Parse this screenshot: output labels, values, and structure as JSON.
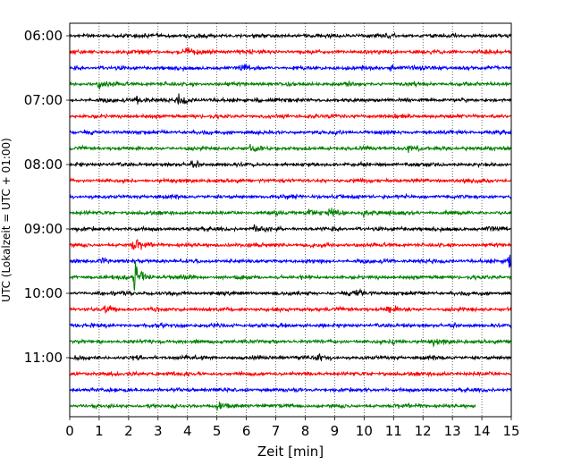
{
  "chart_data": {
    "type": "line",
    "subtype": "helicorder",
    "xlabel": "Zeit  [min]",
    "ylabel": "UTC (Lokalzeit = UTC + 01:00)",
    "xlim": [
      0,
      15
    ],
    "x_ticks": [
      "0",
      "1",
      "2",
      "3",
      "4",
      "5",
      "6",
      "7",
      "8",
      "9",
      "10",
      "11",
      "12",
      "13",
      "14",
      "15"
    ],
    "y_tick_labels": [
      "06:00",
      "07:00",
      "08:00",
      "09:00",
      "10:00",
      "11:00"
    ],
    "grid": "vertical-dotted",
    "trace_colors": [
      "#000000",
      "#ff0000",
      "#0000ff",
      "#008000"
    ],
    "traces": [
      {
        "start": "06:00",
        "end_min": 15
      },
      {
        "start": "06:15",
        "end_min": 15
      },
      {
        "start": "06:30",
        "end_min": 15
      },
      {
        "start": "06:45",
        "end_min": 15
      },
      {
        "start": "07:00",
        "end_min": 15
      },
      {
        "start": "07:15",
        "end_min": 15
      },
      {
        "start": "07:30",
        "end_min": 15
      },
      {
        "start": "07:45",
        "end_min": 15
      },
      {
        "start": "08:00",
        "end_min": 15
      },
      {
        "start": "08:15",
        "end_min": 15
      },
      {
        "start": "08:30",
        "end_min": 15
      },
      {
        "start": "08:45",
        "end_min": 15
      },
      {
        "start": "09:00",
        "end_min": 15
      },
      {
        "start": "09:15",
        "end_min": 15
      },
      {
        "start": "09:30",
        "end_min": 15
      },
      {
        "start": "09:45",
        "end_min": 15
      },
      {
        "start": "10:00",
        "end_min": 15
      },
      {
        "start": "10:15",
        "end_min": 15
      },
      {
        "start": "10:30",
        "end_min": 15
      },
      {
        "start": "10:45",
        "end_min": 15
      },
      {
        "start": "11:00",
        "end_min": 15
      },
      {
        "start": "11:15",
        "end_min": 15
      },
      {
        "start": "11:30",
        "end_min": 15
      },
      {
        "start": "11:45",
        "end_min": 13.8
      }
    ],
    "events": [
      {
        "trace": 1,
        "x": 4.0,
        "amp": 2.2
      },
      {
        "trace": 2,
        "x": 5.8,
        "amp": 1.5
      },
      {
        "trace": 2,
        "x": 10.9,
        "amp": 1.6
      },
      {
        "trace": 3,
        "x": 1.0,
        "amp": 1.4
      },
      {
        "trace": 4,
        "x": 2.3,
        "amp": 1.8
      },
      {
        "trace": 4,
        "x": 3.7,
        "amp": 2.4
      },
      {
        "trace": 4,
        "x": 6.3,
        "amp": 1.2
      },
      {
        "trace": 7,
        "x": 6.1,
        "amp": 1.3
      },
      {
        "trace": 7,
        "x": 11.5,
        "amp": 1.4
      },
      {
        "trace": 8,
        "x": 4.1,
        "amp": 1.3
      },
      {
        "trace": 11,
        "x": 8.0,
        "amp": 2.0
      },
      {
        "trace": 11,
        "x": 8.8,
        "amp": 2.5
      },
      {
        "trace": 11,
        "x": 10.0,
        "amp": 1.5
      },
      {
        "trace": 12,
        "x": 6.3,
        "amp": 1.8
      },
      {
        "trace": 12,
        "x": 14.2,
        "amp": 1.3
      },
      {
        "trace": 13,
        "x": 2.15,
        "amp": 3.0
      },
      {
        "trace": 14,
        "x": 1.0,
        "amp": 1.6
      },
      {
        "trace": 14,
        "x": 14.9,
        "amp": 4.5
      },
      {
        "trace": 15,
        "x": 2.2,
        "amp": 8.0
      },
      {
        "trace": 16,
        "x": 9.7,
        "amp": 1.8
      },
      {
        "trace": 17,
        "x": 10.8,
        "amp": 2.2
      },
      {
        "trace": 17,
        "x": 1.2,
        "amp": 1.6
      },
      {
        "trace": 19,
        "x": 11.0,
        "amp": 1.6
      },
      {
        "trace": 19,
        "x": 12.3,
        "amp": 1.4
      },
      {
        "trace": 20,
        "x": 8.4,
        "amp": 1.5
      },
      {
        "trace": 23,
        "x": 5.0,
        "amp": 1.3
      }
    ]
  }
}
